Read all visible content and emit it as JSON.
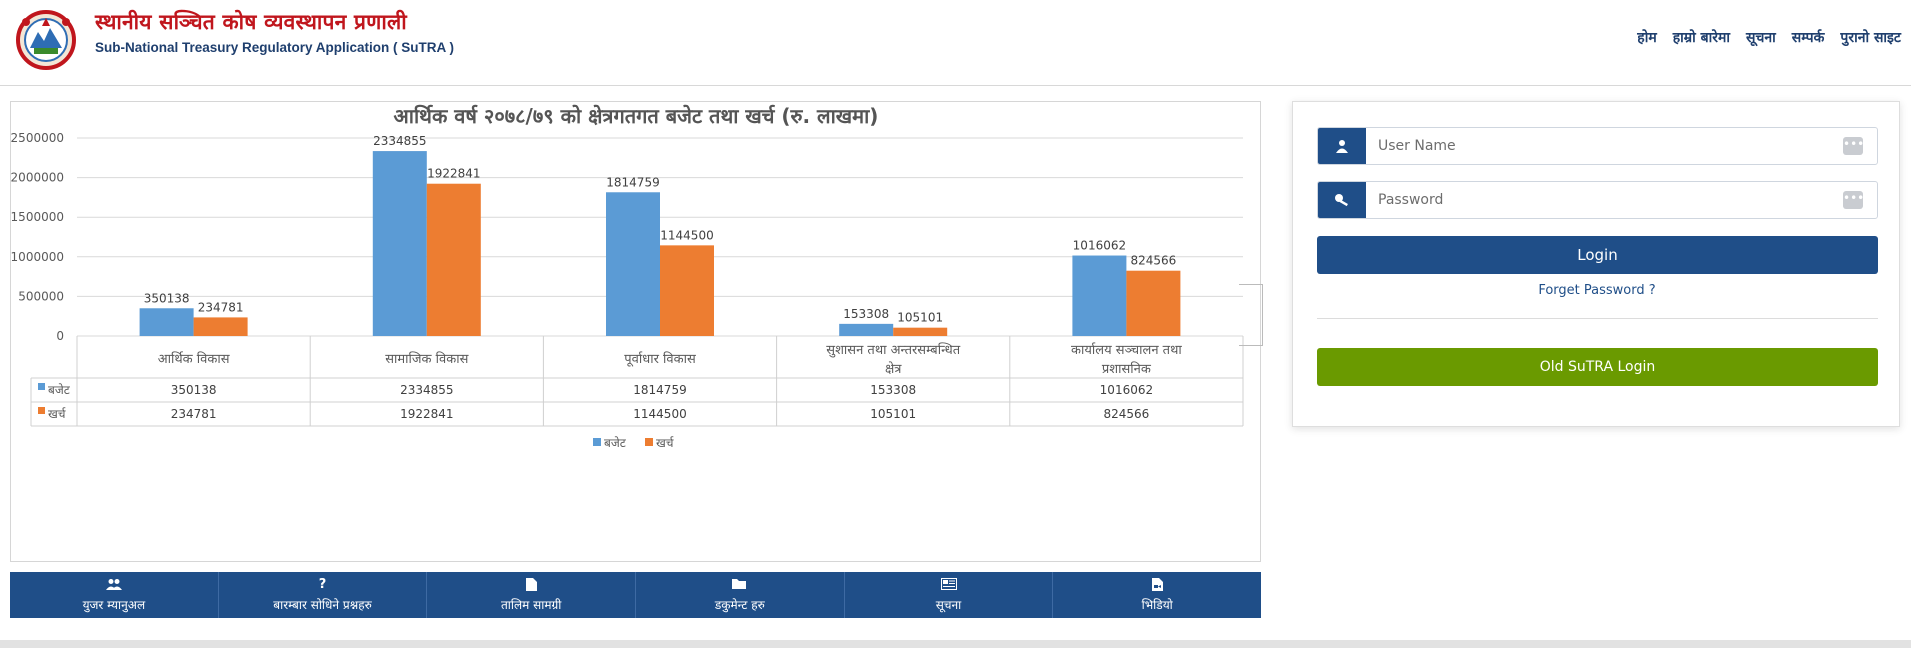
{
  "header": {
    "title": "स्थानीय सञ्चित कोष व्यवस्थापन प्रणाली",
    "subtitle": "Sub-National Treasury Regulatory Application ( SuTRA )",
    "logo": "nepal-emblem-logo"
  },
  "nav": {
    "items": [
      "होम",
      "हाम्रो बारेमा",
      "सूचना",
      "सम्पर्क",
      "पुरानो साइट"
    ]
  },
  "chart_data": {
    "type": "bar",
    "title": "आर्थिक वर्ष २०७८/७९ को क्षेत्रगतगत बजेट  तथा खर्च  (रु. लाखमा)",
    "categories": [
      "आर्थिक  विकास",
      "सामाजिक  विकास",
      "पूर्वाधार  विकास",
      "सुशासन  तथा  अन्तरसम्बन्धित क्षेत्र",
      "कार्यालय  सञ्चालन  तथा प्रशासनिक"
    ],
    "series": [
      {
        "name": "बजेट",
        "values": [
          350138,
          2334855,
          1814759,
          153308,
          1016062
        ],
        "color": "#5b9bd5"
      },
      {
        "name": "खर्च",
        "values": [
          234781,
          1922841,
          1144500,
          105101,
          824566
        ],
        "color": "#ed7d31"
      }
    ],
    "ylim": [
      0,
      2500000
    ],
    "yticks": [
      "2500000",
      "2000000",
      "1500000",
      "1000000",
      "500000",
      "0"
    ],
    "ytick_values": [
      2500000,
      2000000,
      1500000,
      1000000,
      500000,
      0
    ],
    "grid": true,
    "legend": "bottom",
    "data_table": true
  },
  "bottom_bar": {
    "items": [
      {
        "label": "युजर म्यानुअल",
        "icon": "users-icon"
      },
      {
        "label": "बारम्बार सोधिने प्रश्नहरु",
        "icon": "question-icon"
      },
      {
        "label": "तालिम सामग्री",
        "icon": "file-icon"
      },
      {
        "label": "डकुमेन्ट हरु",
        "icon": "folder-icon"
      },
      {
        "label": "सूचना",
        "icon": "newspaper-icon"
      },
      {
        "label": "भिडियो",
        "icon": "video-file-icon"
      }
    ]
  },
  "login": {
    "username_placeholder": "User Name",
    "password_placeholder": "Password",
    "login_label": "Login",
    "forget_label": "Forget Password ?",
    "old_label": "Old SuTRA Login",
    "accent": "#1f4e88",
    "old_color": "#6a9a00"
  }
}
